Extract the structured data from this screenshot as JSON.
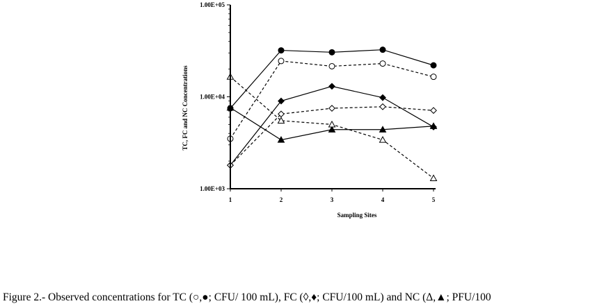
{
  "chart_data": {
    "type": "line",
    "xlabel": "Sampling Sites",
    "ylabel": "TC, FC and NC Concentrations",
    "yscale": "log",
    "ylim": [
      1000,
      100000
    ],
    "yticks": [
      "1.00E+03",
      "1.00E+04",
      "1.00E+05"
    ],
    "x": [
      1,
      2,
      3,
      4,
      5
    ],
    "xticks": [
      "1",
      "2",
      "3",
      "4",
      "5"
    ],
    "series": [
      {
        "marker": "filled-circle",
        "style": "solid",
        "values": [
          7500,
          32000,
          30500,
          32500,
          22000
        ]
      },
      {
        "marker": "open-circle",
        "style": "dashed",
        "values": [
          3500,
          24500,
          21500,
          23000,
          16500
        ]
      },
      {
        "marker": "filled-diamond",
        "style": "solid",
        "values": [
          1800,
          9000,
          13000,
          9800,
          4700
        ]
      },
      {
        "marker": "open-diamond",
        "style": "dashed",
        "values": [
          1800,
          6500,
          7500,
          7800,
          7100
        ]
      },
      {
        "marker": "filled-triangle",
        "style": "solid",
        "values": [
          7600,
          3400,
          4400,
          4400,
          4800
        ]
      },
      {
        "marker": "open-triangle",
        "style": "dashed",
        "values": [
          16500,
          5500,
          5000,
          3400,
          1300
        ]
      }
    ]
  },
  "caption": "Figure 2.- Observed concentrations for TC (○,●; CFU/ 100 mL), FC (◊,♦; CFU/100 mL) and NC (Δ,▲; PFU/100"
}
